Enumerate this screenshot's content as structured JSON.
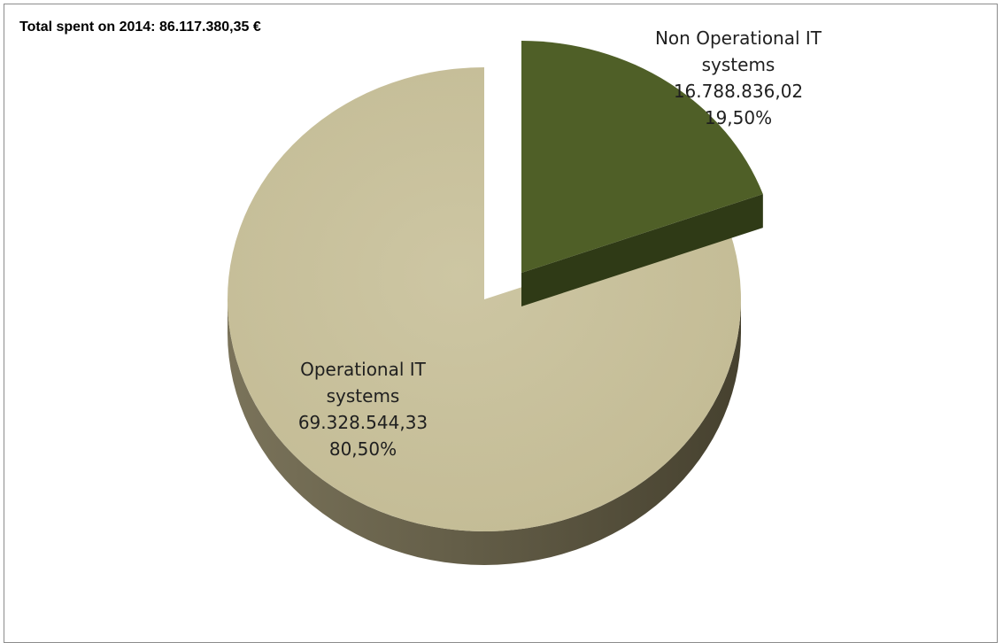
{
  "chart_data": {
    "type": "pie",
    "title": "Total spent on 2014: 86.117.380,35 €",
    "slices": [
      {
        "label_lines": [
          "Non Operational IT",
          "systems"
        ],
        "value": 16788836.02,
        "value_text": "16.788.836,02",
        "percent": 19.5,
        "percent_text": "19,50%",
        "exploded": true,
        "color_top": "#4f5f27",
        "color_side": "#2f3a16"
      },
      {
        "label_lines": [
          "Operational IT",
          "systems"
        ],
        "value": 69328544.33,
        "value_text": "69.328.544,33",
        "percent": 80.5,
        "percent_text": "80,50%",
        "exploded": false,
        "color_top": "#c8c19c",
        "color_side": "#6e6850"
      }
    ],
    "legend": "none",
    "style": "3d"
  }
}
